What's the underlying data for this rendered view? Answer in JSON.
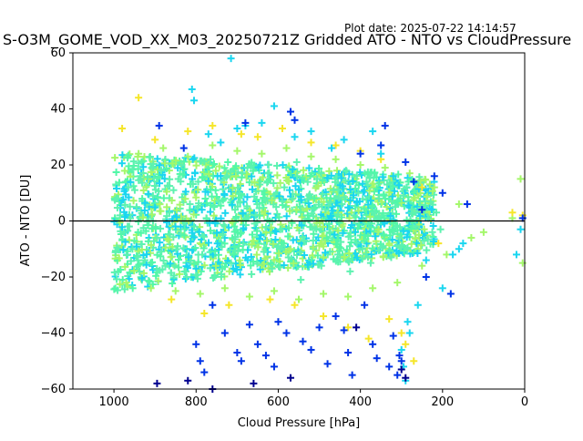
{
  "figure": {
    "plot_date": "Plot date: 2025-07-22 14:14:57",
    "title": "S-O3M_GOME_VOD_XX_M03_20250721Z Gridded ATO - NTO vs CloudPressure"
  },
  "chart_data": {
    "type": "scatter",
    "title": "S-O3M_GOME_VOD_XX_M03_20250721Z Gridded ATO - NTO vs CloudPressure",
    "xlabel": "Cloud Pressure [hPa]",
    "ylabel": "ATO - NTO [DU]",
    "xlim": [
      1100,
      0
    ],
    "ylim": [
      -60,
      60
    ],
    "x_inverted": true,
    "xticks": [
      1000,
      800,
      600,
      400,
      200,
      0
    ],
    "yticks": [
      -60,
      -40,
      -20,
      0,
      20,
      40,
      60
    ],
    "reference_line": {
      "y": 0,
      "color": "#000000"
    },
    "marker": "+",
    "grid": false,
    "legend": "none",
    "colors": {
      "dense_core": "#5df2b0",
      "core_fill": "#52f7a8",
      "light_green": "#a4f76a",
      "yellow": "#f5e62a",
      "cyan": "#1ad6f0",
      "blue": "#0033e6",
      "navy": "#00008f"
    },
    "series": [
      {
        "color": "#5df2b0",
        "description_points": "dense core",
        "points": [
          [
            990,
            8
          ],
          [
            985,
            2
          ],
          [
            975,
            -4
          ],
          [
            965,
            12
          ],
          [
            955,
            -10
          ],
          [
            945,
            5
          ],
          [
            935,
            15
          ],
          [
            925,
            -14
          ],
          [
            915,
            0
          ],
          [
            905,
            9
          ],
          [
            895,
            -6
          ],
          [
            885,
            18
          ],
          [
            875,
            -16
          ],
          [
            865,
            3
          ],
          [
            855,
            11
          ],
          [
            845,
            -9
          ],
          [
            835,
            20
          ],
          [
            825,
            -18
          ],
          [
            815,
            6
          ],
          [
            805,
            -2
          ],
          [
            795,
            14
          ],
          [
            785,
            -12
          ],
          [
            775,
            1
          ],
          [
            765,
            22
          ],
          [
            755,
            -20
          ],
          [
            745,
            7
          ],
          [
            735,
            -5
          ],
          [
            725,
            16
          ],
          [
            715,
            -15
          ],
          [
            705,
            4
          ],
          [
            695,
            10
          ],
          [
            685,
            -8
          ],
          [
            675,
            19
          ],
          [
            665,
            -19
          ],
          [
            655,
            2
          ],
          [
            645,
            13
          ],
          [
            635,
            -11
          ],
          [
            625,
            17
          ],
          [
            615,
            -17
          ],
          [
            605,
            5
          ],
          [
            595,
            -3
          ],
          [
            585,
            12
          ],
          [
            575,
            -13
          ],
          [
            565,
            8
          ],
          [
            555,
            21
          ],
          [
            545,
            -21
          ],
          [
            535,
            0
          ],
          [
            525,
            9
          ],
          [
            515,
            -7
          ],
          [
            505,
            15
          ],
          [
            495,
            -16
          ],
          [
            485,
            4
          ],
          [
            475,
            -4
          ],
          [
            465,
            11
          ],
          [
            455,
            -12
          ],
          [
            445,
            6
          ],
          [
            435,
            18
          ],
          [
            425,
            -18
          ],
          [
            415,
            2
          ],
          [
            405,
            10
          ],
          [
            395,
            -10
          ],
          [
            385,
            14
          ],
          [
            375,
            -15
          ],
          [
            365,
            3
          ],
          [
            355,
            8
          ],
          [
            345,
            -9
          ],
          [
            335,
            13
          ],
          [
            325,
            -13
          ],
          [
            315,
            5
          ],
          [
            305,
            -6
          ],
          [
            295,
            9
          ],
          [
            285,
            -10
          ],
          [
            275,
            4
          ],
          [
            265,
            -2
          ],
          [
            255,
            7
          ],
          [
            245,
            -7
          ],
          [
            235,
            1
          ],
          [
            225,
            -4
          ],
          [
            215,
            3
          ],
          [
            205,
            -3
          ]
        ]
      },
      {
        "color": "#a4f76a",
        "points": [
          [
            970,
            -22
          ],
          [
            940,
            24
          ],
          [
            910,
            -24
          ],
          [
            880,
            26
          ],
          [
            850,
            -25
          ],
          [
            820,
            23
          ],
          [
            790,
            -26
          ],
          [
            760,
            27
          ],
          [
            730,
            -24
          ],
          [
            700,
            25
          ],
          [
            670,
            -27
          ],
          [
            640,
            24
          ],
          [
            610,
            -25
          ],
          [
            580,
            26
          ],
          [
            550,
            -28
          ],
          [
            520,
            23
          ],
          [
            490,
            -26
          ],
          [
            460,
            22
          ],
          [
            430,
            -27
          ],
          [
            400,
            20
          ],
          [
            370,
            -24
          ],
          [
            340,
            19
          ],
          [
            310,
            -22
          ],
          [
            280,
            17
          ],
          [
            250,
            -16
          ],
          [
            220,
            12
          ],
          [
            190,
            -12
          ],
          [
            160,
            6
          ],
          [
            130,
            -6
          ],
          [
            100,
            -4
          ],
          [
            30,
            1
          ],
          [
            10,
            15
          ],
          [
            5,
            -15
          ]
        ]
      },
      {
        "color": "#f5e62a",
        "points": [
          [
            980,
            33
          ],
          [
            940,
            44
          ],
          [
            900,
            29
          ],
          [
            860,
            -28
          ],
          [
            820,
            32
          ],
          [
            780,
            -33
          ],
          [
            760,
            34
          ],
          [
            720,
            -30
          ],
          [
            690,
            31
          ],
          [
            650,
            30
          ],
          [
            620,
            -28
          ],
          [
            590,
            33
          ],
          [
            560,
            -30
          ],
          [
            520,
            28
          ],
          [
            490,
            -34
          ],
          [
            460,
            27
          ],
          [
            430,
            -38
          ],
          [
            400,
            25
          ],
          [
            380,
            -42
          ],
          [
            350,
            22
          ],
          [
            330,
            -35
          ],
          [
            300,
            -40
          ],
          [
            290,
            -44
          ],
          [
            270,
            -50
          ],
          [
            250,
            12
          ],
          [
            210,
            -8
          ],
          [
            30,
            3
          ],
          [
            5,
            2
          ]
        ]
      },
      {
        "color": "#1ad6f0",
        "points": [
          [
            810,
            47
          ],
          [
            805,
            43
          ],
          [
            770,
            31
          ],
          [
            740,
            28
          ],
          [
            715,
            58
          ],
          [
            700,
            33
          ],
          [
            680,
            34
          ],
          [
            640,
            35
          ],
          [
            610,
            41
          ],
          [
            560,
            30
          ],
          [
            520,
            32
          ],
          [
            470,
            26
          ],
          [
            440,
            29
          ],
          [
            370,
            32
          ],
          [
            350,
            24
          ],
          [
            320,
            16
          ],
          [
            300,
            -46
          ],
          [
            295,
            -52
          ],
          [
            290,
            -57
          ],
          [
            285,
            -36
          ],
          [
            280,
            -40
          ],
          [
            260,
            -30
          ],
          [
            240,
            -14
          ],
          [
            200,
            -24
          ],
          [
            175,
            -12
          ],
          [
            160,
            -10
          ],
          [
            150,
            -8
          ],
          [
            20,
            -12
          ],
          [
            10,
            -3
          ]
        ]
      },
      {
        "color": "#0033e6",
        "points": [
          [
            890,
            34
          ],
          [
            830,
            26
          ],
          [
            800,
            -44
          ],
          [
            790,
            -50
          ],
          [
            780,
            -54
          ],
          [
            760,
            -30
          ],
          [
            730,
            -40
          ],
          [
            700,
            -47
          ],
          [
            690,
            -50
          ],
          [
            680,
            35
          ],
          [
            670,
            -37
          ],
          [
            650,
            -44
          ],
          [
            630,
            -48
          ],
          [
            610,
            -52
          ],
          [
            600,
            -36
          ],
          [
            580,
            -40
          ],
          [
            570,
            39
          ],
          [
            560,
            36
          ],
          [
            540,
            -43
          ],
          [
            520,
            -46
          ],
          [
            500,
            -38
          ],
          [
            480,
            -51
          ],
          [
            460,
            -34
          ],
          [
            440,
            -39
          ],
          [
            430,
            -47
          ],
          [
            420,
            -55
          ],
          [
            400,
            24
          ],
          [
            390,
            -30
          ],
          [
            370,
            -44
          ],
          [
            360,
            -49
          ],
          [
            350,
            27
          ],
          [
            340,
            34
          ],
          [
            330,
            -52
          ],
          [
            320,
            -41
          ],
          [
            310,
            -55
          ],
          [
            305,
            -48
          ],
          [
            300,
            -50
          ],
          [
            290,
            21
          ],
          [
            270,
            14
          ],
          [
            250,
            4
          ],
          [
            240,
            -20
          ],
          [
            220,
            16
          ],
          [
            200,
            10
          ],
          [
            180,
            -26
          ],
          [
            140,
            6
          ],
          [
            5,
            1
          ]
        ]
      },
      {
        "color": "#00008f",
        "points": [
          [
            895,
            -58
          ],
          [
            820,
            -57
          ],
          [
            760,
            -60
          ],
          [
            660,
            -58
          ],
          [
            570,
            -56
          ],
          [
            410,
            -38
          ],
          [
            300,
            -53
          ],
          [
            290,
            -56
          ]
        ]
      }
    ]
  }
}
